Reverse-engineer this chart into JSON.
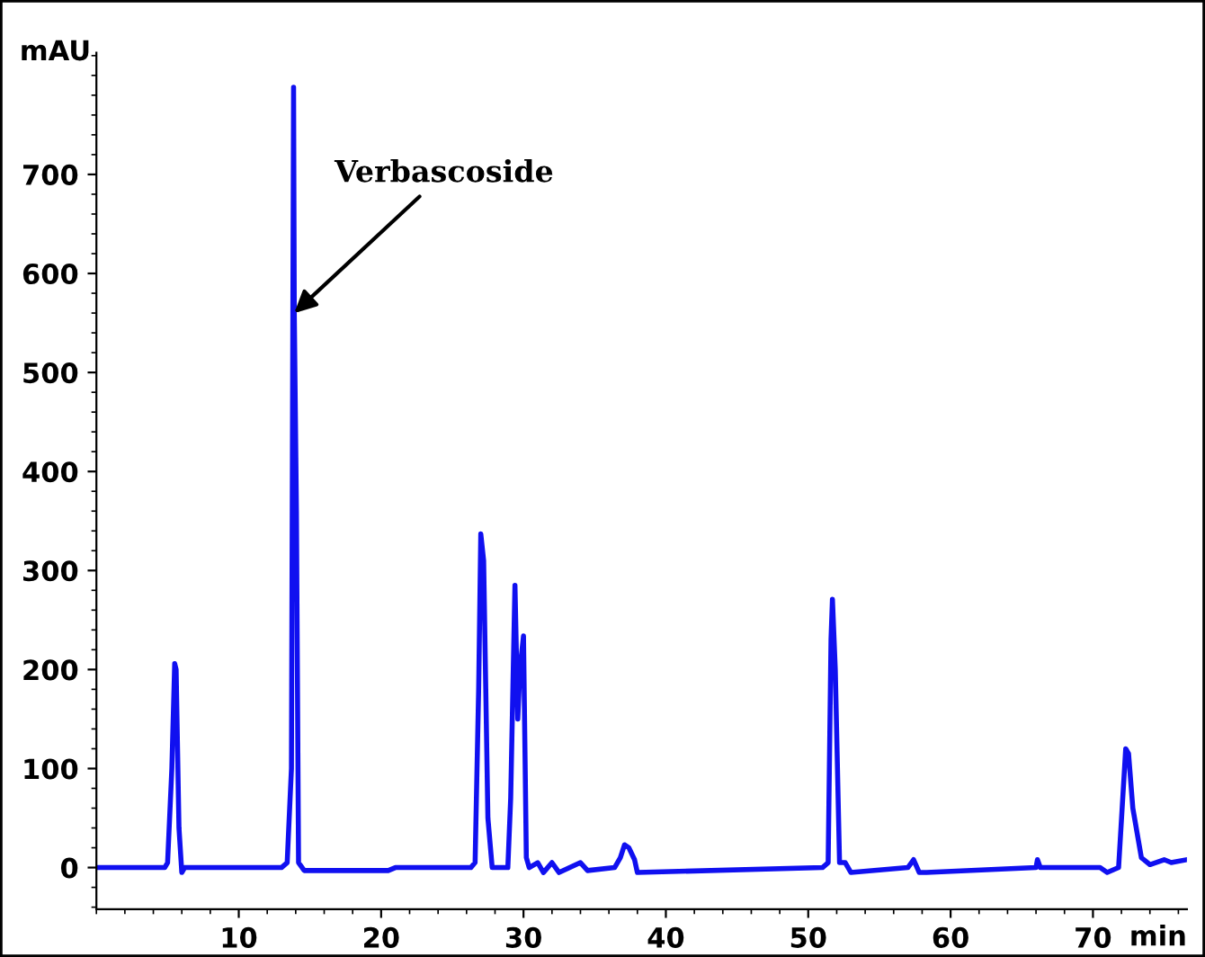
{
  "chart_data": {
    "type": "line",
    "xlabel": "min",
    "ylabel": "mAU",
    "xlim": [
      0,
      76.6
    ],
    "ylim": [
      -42,
      823
    ],
    "xticks": [
      10,
      20,
      30,
      40,
      50,
      60,
      70
    ],
    "yticks": [
      0,
      100,
      200,
      300,
      400,
      500,
      600,
      700
    ],
    "grid": false,
    "legend": false,
    "marker": "none",
    "line_style": "solid",
    "annotations": [
      {
        "text": "Verbascoside",
        "x": 13.9,
        "y": 560
      }
    ],
    "series": [
      {
        "color": "#1010f0",
        "x": [
          0,
          4.8,
          5.0,
          5.3,
          5.5,
          5.6,
          5.8,
          6.0,
          6.2,
          6.4,
          13.0,
          13.4,
          13.7,
          13.85,
          13.9,
          14.05,
          14.2,
          14.6,
          20.5,
          21,
          26.3,
          26.6,
          26.85,
          27.0,
          27.2,
          27.5,
          27.8,
          28.9,
          29.1,
          29.4,
          29.6,
          29.75,
          30.0,
          30.2,
          30.4,
          31.0,
          31.4,
          32.0,
          32.5,
          34.0,
          34.5,
          36.4,
          36.8,
          37.1,
          37.4,
          37.8,
          38.0,
          51.0,
          51.4,
          51.6,
          51.7,
          51.9,
          52.2,
          52.6,
          53.0,
          57.0,
          57.4,
          57.8,
          58.3,
          66.0,
          66.1,
          66.3,
          70.5,
          71.0,
          71.8,
          72.3,
          72.5,
          72.8,
          73.4,
          74.0,
          75.0,
          75.5,
          76.6
        ],
        "values": [
          0,
          0,
          5,
          100,
          206,
          200,
          40,
          -5,
          0,
          0,
          0,
          5,
          100,
          788,
          560,
          360,
          5,
          -3,
          -3,
          0,
          0,
          5,
          180,
          337,
          310,
          50,
          0,
          0,
          70,
          285,
          150,
          200,
          234,
          10,
          0,
          5,
          -5,
          5,
          -5,
          5,
          -3,
          0,
          10,
          23,
          20,
          8,
          -5,
          0,
          5,
          230,
          271,
          200,
          5,
          5,
          -5,
          0,
          8,
          -5,
          -5,
          0,
          8,
          0,
          0,
          -5,
          0,
          120,
          115,
          60,
          10,
          3,
          8,
          5,
          8
        ]
      }
    ]
  }
}
